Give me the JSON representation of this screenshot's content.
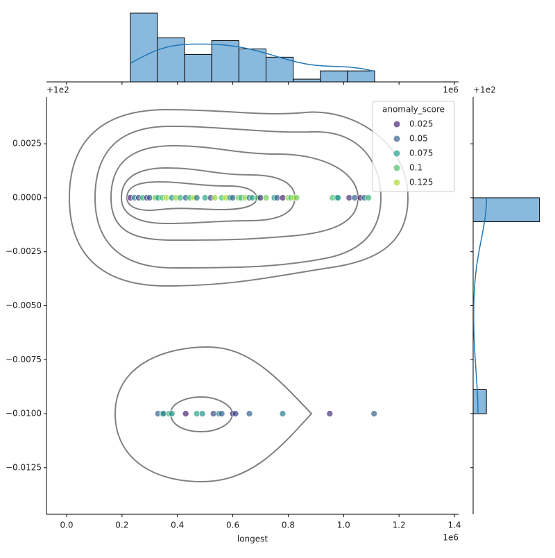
{
  "chart_data": {
    "type": "jointplot",
    "x_label": "longest",
    "x_offset": "1e6",
    "y_offset": "+1e2",
    "xlim": [
      -0.0726,
      1.415
    ],
    "ylim": [
      -0.01466,
      0.00466
    ],
    "xticks": [
      {
        "value": 0,
        "label": "0.0"
      },
      {
        "value": 0.2,
        "label": "0.2"
      },
      {
        "value": 0.4,
        "label": "0.4"
      },
      {
        "value": 0.6,
        "label": "0.6"
      },
      {
        "value": 0.8,
        "label": "0.8"
      },
      {
        "value": 1.0,
        "label": "1.0"
      },
      {
        "value": 1.2,
        "label": "1.2"
      },
      {
        "value": 1.4,
        "label": "1.4"
      }
    ],
    "yticks": [
      {
        "value": 0.0025,
        "label": "0.0025"
      },
      {
        "value": 0,
        "label": "0.0000"
      },
      {
        "value": -0.0025,
        "label": "−0.0025"
      },
      {
        "value": -0.005,
        "label": "−0.0050"
      },
      {
        "value": -0.0075,
        "label": "−0.0075"
      },
      {
        "value": -0.01,
        "label": "−0.0100"
      },
      {
        "value": -0.0125,
        "label": "−0.0125"
      }
    ],
    "legend": {
      "title": "anomaly_score",
      "position": "upper right",
      "levels": [
        0.025,
        0.05,
        0.075,
        0.1,
        0.125
      ],
      "colors": [
        "#482576",
        "#33638d",
        "#1f9e89",
        "#4ac16d",
        "#addc30"
      ]
    },
    "scatter": {
      "x": [
        0.23,
        0.245,
        0.26,
        0.275,
        0.29,
        0.3,
        0.32,
        0.33,
        0.345,
        0.36,
        0.38,
        0.395,
        0.41,
        0.43,
        0.445,
        0.46,
        0.47,
        0.5,
        0.52,
        0.535,
        0.56,
        0.575,
        0.59,
        0.6,
        0.62,
        0.63,
        0.645,
        0.66,
        0.67,
        0.69,
        0.7,
        0.72,
        0.75,
        0.76,
        0.78,
        0.8,
        0.81,
        0.82,
        0.83,
        0.96,
        0.975,
        0.98,
        1.02,
        1.04,
        1.06,
        1.075,
        1.09,
        0.33,
        0.345,
        0.35,
        0.37,
        0.38,
        0.43,
        0.47,
        0.49,
        0.53,
        0.55,
        0.56,
        0.6,
        0.61,
        0.66,
        0.78,
        0.95,
        1.11
      ],
      "y": [
        0,
        0,
        0,
        0,
        0,
        0,
        0,
        0,
        0,
        0,
        0,
        0,
        0,
        0,
        0,
        0,
        0,
        0,
        0,
        0,
        0,
        0,
        0,
        0,
        0,
        0,
        0,
        0,
        0,
        0,
        0,
        0,
        0,
        0,
        0,
        0,
        0,
        0,
        0,
        0,
        0,
        0,
        0,
        0,
        0,
        0,
        0,
        -0.01,
        -0.01,
        -0.01,
        -0.01,
        -0.01,
        -0.01,
        -0.01,
        -0.01,
        -0.01,
        -0.01,
        -0.01,
        -0.01,
        -0.01,
        -0.01,
        -0.01,
        -0.01,
        -0.01
      ],
      "scores": [
        0.02,
        0.06,
        0.04,
        0.09,
        0.03,
        0.05,
        0.11,
        0.08,
        0.1,
        0.13,
        0.07,
        0.12,
        0.09,
        0.05,
        0.1,
        0.13,
        0.06,
        0.08,
        0.04,
        0.12,
        0.1,
        0.13,
        0.07,
        0.05,
        0.11,
        0.09,
        0.12,
        0.06,
        0.08,
        0.1,
        0.03,
        0.11,
        0.07,
        0.05,
        0.02,
        0.12,
        0.1,
        0.13,
        0.11,
        0.1,
        0.08,
        0.07,
        0.03,
        0.05,
        0.02,
        0.06,
        0.09,
        0.05,
        0.08,
        0.06,
        0.09,
        0.07,
        0.02,
        0.08,
        0.07,
        0.04,
        0.06,
        0.05,
        0.03,
        0.04,
        0.05,
        0.06,
        0.03,
        0.05
      ]
    },
    "hist_top": {
      "color": "#89b9dc",
      "line_color": "#1f77b4",
      "bins": [
        0.23,
        0.328,
        0.426,
        0.524,
        0.622,
        0.72,
        0.818,
        0.916,
        1.014,
        1.112
      ],
      "counts": [
        25,
        16,
        10,
        15,
        12,
        9,
        1,
        4,
        4
      ],
      "count_lim": [
        0,
        26
      ]
    },
    "hist_right": {
      "color": "#89b9dc",
      "line_color": "#1f77b4",
      "bins": [
        -0.01,
        -0.00889,
        -0.00778,
        -0.00667,
        -0.00556,
        -0.00444,
        -0.00333,
        -0.00222,
        -0.00111,
        0
      ],
      "counts": [
        16,
        0,
        0,
        0,
        0,
        0,
        0,
        0,
        80
      ],
      "count_lim": [
        0,
        82
      ]
    }
  }
}
